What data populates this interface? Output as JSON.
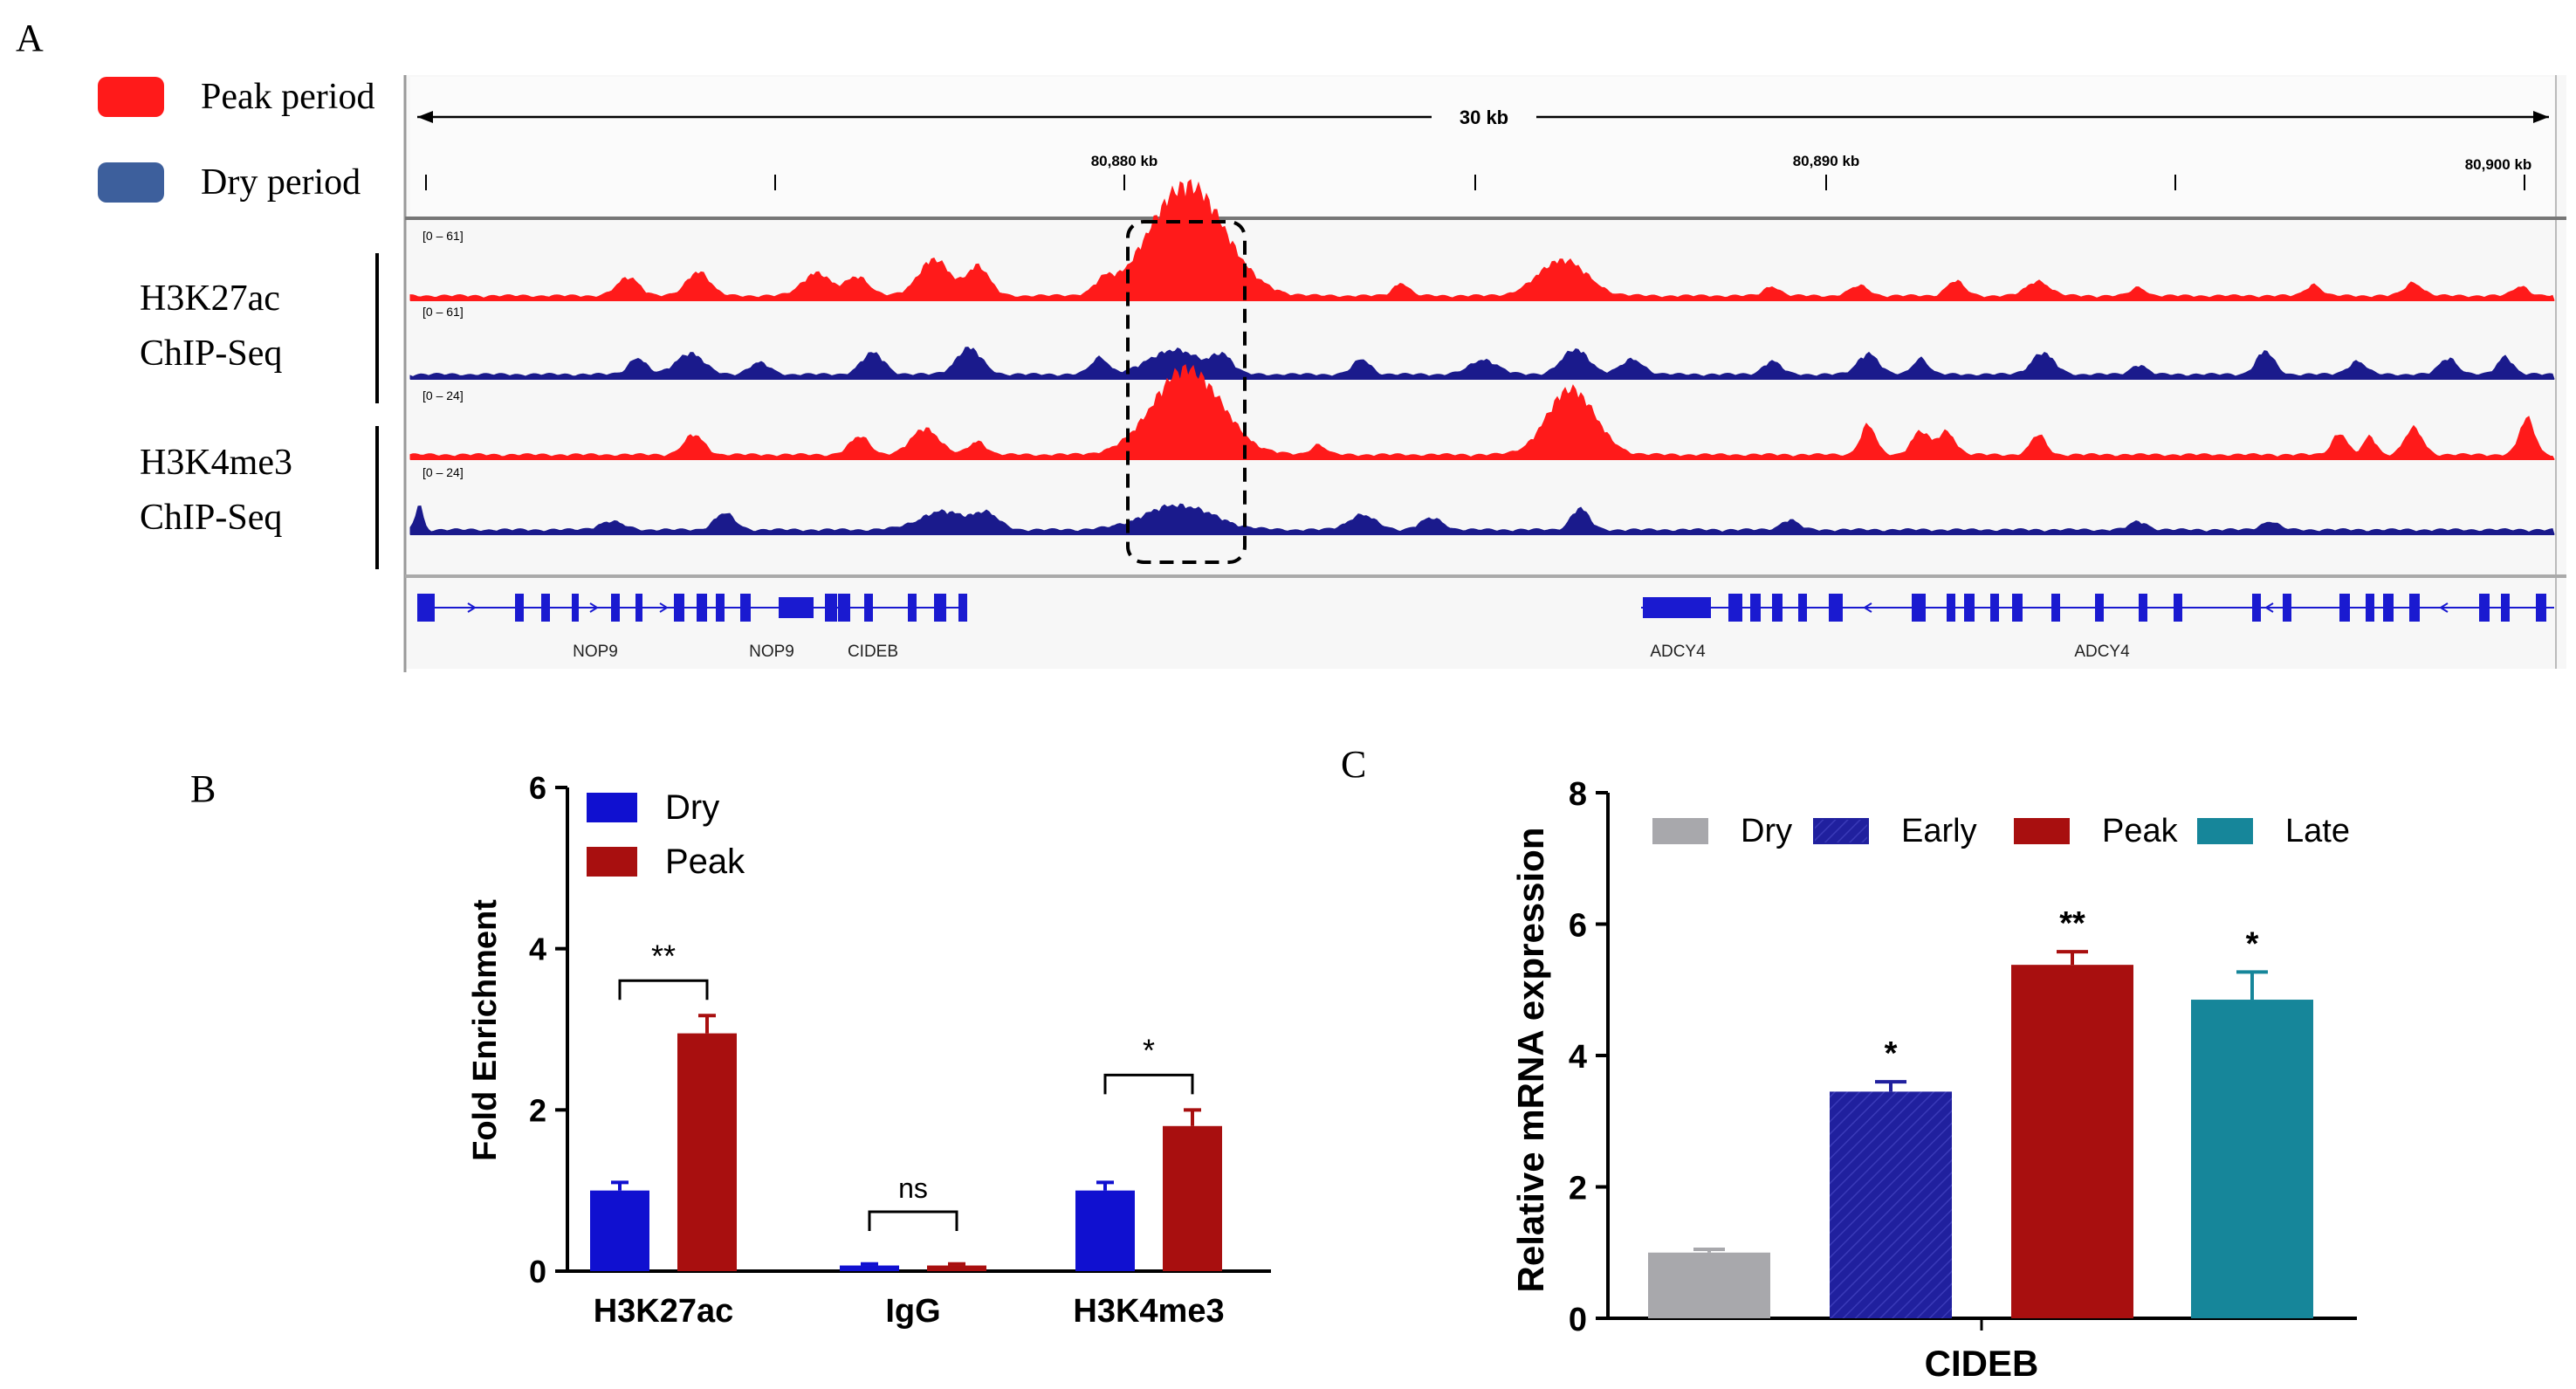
{
  "colors": {
    "peak": "#ff1a1a",
    "dry": "#1a1a8c",
    "legend_dry": "#3d5f9c",
    "b_dry": "#1010d0",
    "b_peak": "#a80f0f",
    "c_dry": "#a8a8ac",
    "c_early": "#20209e",
    "c_peak": "#a80f0f",
    "c_late": "#16869a",
    "gene": "#1a1ad0"
  },
  "panel_a": {
    "label": "A",
    "legend": [
      {
        "name": "Peak period",
        "color": "peak"
      },
      {
        "name": "Dry period",
        "color": "legend_dry"
      }
    ],
    "groups": [
      "H3K27ac ChIP-Seq",
      "H3K4me3 ChIP-Seq"
    ],
    "group_lines": [
      [
        "H3K27ac",
        "ChIP-Seq"
      ],
      [
        "H3K4me3",
        "ChIP-Seq"
      ]
    ],
    "ruler": {
      "span_label": "30 kb",
      "ticks": [
        "80,880 kb",
        "80,890 kb",
        "80,900 kb"
      ]
    },
    "tracks": [
      {
        "range": "[0 – 61]",
        "color": "peak"
      },
      {
        "range": "[0 – 61]",
        "color": "dry"
      },
      {
        "range": "[0 – 24]",
        "color": "peak"
      },
      {
        "range": "[0 – 24]",
        "color": "dry"
      }
    ],
    "genes": [
      "NOP9",
      "NOP9",
      "CIDEB",
      "ADCY4",
      "ADCY4"
    ]
  },
  "chart_data": [
    {
      "type": "bar",
      "panel": "B",
      "categories": [
        "H3K27ac",
        "IgG",
        "H3K4me3"
      ],
      "series": [
        {
          "name": "Dry",
          "values": [
            1.0,
            0.07,
            1.0
          ],
          "errors": [
            0.1,
            0.02,
            0.1
          ]
        },
        {
          "name": "Peak",
          "values": [
            2.95,
            0.07,
            1.8
          ],
          "errors": [
            0.22,
            0.02,
            0.2
          ]
        }
      ],
      "significance": [
        "**",
        "ns",
        "*"
      ],
      "xlabel": "",
      "ylabel": "Fold Enrichment",
      "ylim": [
        0,
        6
      ],
      "yticks": [
        "0",
        "2",
        "4",
        "6"
      ],
      "legend_position": "top-left"
    },
    {
      "type": "bar",
      "panel": "C",
      "categories": [
        "CIDEB"
      ],
      "series": [
        {
          "name": "Dry",
          "values": [
            1.0
          ],
          "errors": [
            0.05
          ],
          "sig": ""
        },
        {
          "name": "Early",
          "values": [
            3.45
          ],
          "errors": [
            0.15
          ],
          "sig": "*"
        },
        {
          "name": "Peak",
          "values": [
            5.38
          ],
          "errors": [
            0.2
          ],
          "sig": "**"
        },
        {
          "name": "Late",
          "values": [
            4.85
          ],
          "errors": [
            0.42
          ],
          "sig": "*"
        }
      ],
      "xlabel": "CIDEB",
      "ylabel": "Relative mRNA expression",
      "ylim": [
        0,
        8
      ],
      "yticks": [
        "0",
        "2",
        "4",
        "6",
        "8"
      ],
      "legend_position": "top"
    }
  ]
}
